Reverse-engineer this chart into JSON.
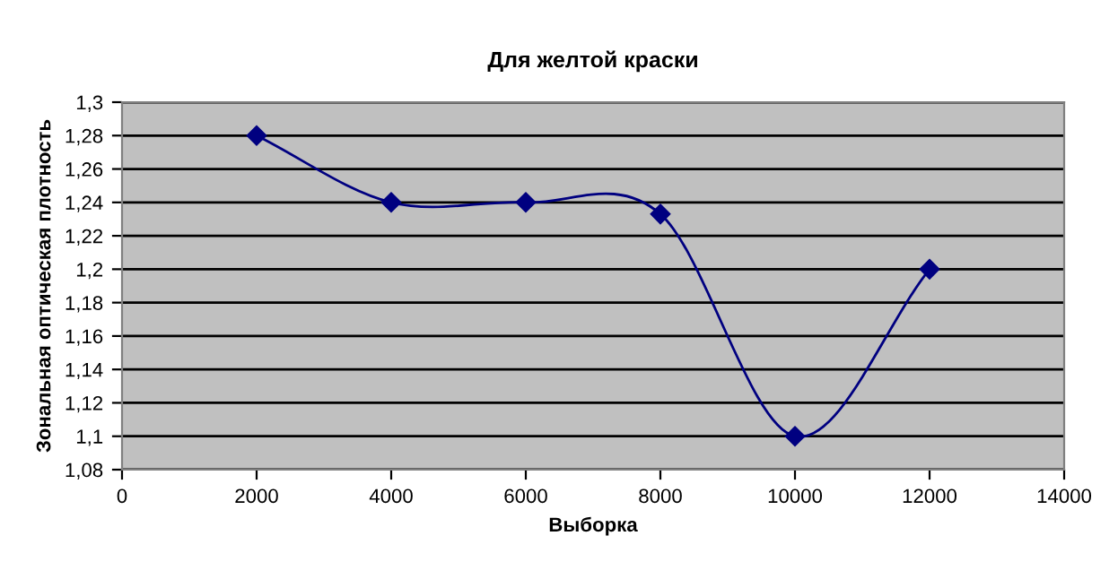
{
  "chart_data": {
    "type": "line",
    "title": "Для желтой краски",
    "xlabel": "Выборка",
    "ylabel": "Зональная оптическая плотность",
    "x": [
      2000,
      4000,
      6000,
      8000,
      10000,
      12000
    ],
    "series": [
      {
        "color": "#000080",
        "values": [
          1.28,
          1.24,
          1.24,
          1.233,
          1.1,
          1.2
        ]
      }
    ],
    "marker": "diamond",
    "line_style": "solid",
    "grid": "y",
    "legend": false,
    "xlim": [
      0,
      14000
    ],
    "xticks": [
      0,
      2000,
      4000,
      6000,
      8000,
      10000,
      12000,
      14000
    ],
    "ylim": [
      1.08,
      1.3
    ],
    "yticks": [
      {
        "value": 1.08,
        "label": "1,08"
      },
      {
        "value": 1.1,
        "label": "1,1"
      },
      {
        "value": 1.12,
        "label": "1,12"
      },
      {
        "value": 1.14,
        "label": "1,14"
      },
      {
        "value": 1.16,
        "label": "1,16"
      },
      {
        "value": 1.18,
        "label": "1,18"
      },
      {
        "value": 1.2,
        "label": "1,2"
      },
      {
        "value": 1.22,
        "label": "1,22"
      },
      {
        "value": 1.24,
        "label": "1,24"
      },
      {
        "value": 1.26,
        "label": "1,26"
      },
      {
        "value": 1.28,
        "label": "1,28"
      },
      {
        "value": 1.3,
        "label": "1,3"
      }
    ]
  }
}
